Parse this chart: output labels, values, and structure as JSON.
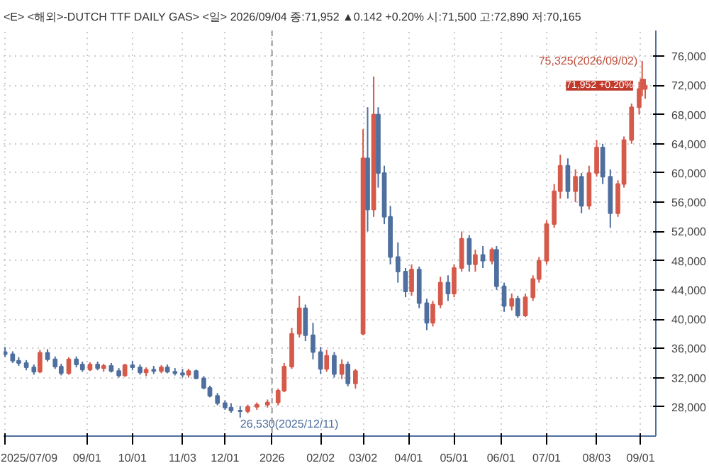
{
  "chart_data": {
    "type": "candlestick",
    "title": "<E> <해외>-DUTCH TTF DAILY GAS> <일> 2026/09/04 종:71,952 ▲0.142 +0.20% 시:71,500 고:72,890 저:70,165",
    "x": [
      "2025-07-09",
      "2025-07-14",
      "2025-07-18",
      "2025-07-23",
      "2025-07-28",
      "2025-08-01",
      "2025-08-06",
      "2025-08-11",
      "2025-08-15",
      "2025-08-20",
      "2025-08-25",
      "2025-08-29",
      "2025-09-03",
      "2025-09-08",
      "2025-09-12",
      "2025-09-17",
      "2025-09-22",
      "2025-09-26",
      "2025-10-01",
      "2025-10-06",
      "2025-10-10",
      "2025-10-15",
      "2025-10-20",
      "2025-10-24",
      "2025-10-29",
      "2025-11-03",
      "2025-11-07",
      "2025-11-12",
      "2025-11-17",
      "2025-11-21",
      "2025-11-26",
      "2025-12-01",
      "2025-12-05",
      "2025-12-11",
      "2025-12-16",
      "2025-12-22",
      "2025-12-29",
      "2026-01-05",
      "2026-01-09",
      "2026-01-14",
      "2026-01-19",
      "2026-01-23",
      "2026-01-28",
      "2026-02-02",
      "2026-02-06",
      "2026-02-11",
      "2026-02-16",
      "2026-02-20",
      "2026-02-25",
      "2026-03-02",
      "2026-03-05",
      "2026-03-09",
      "2026-03-12",
      "2026-03-16",
      "2026-03-20",
      "2026-03-25",
      "2026-03-30",
      "2026-04-03",
      "2026-04-08",
      "2026-04-13",
      "2026-04-17",
      "2026-04-22",
      "2026-04-27",
      "2026-05-01",
      "2026-05-06",
      "2026-05-11",
      "2026-05-15",
      "2026-05-20",
      "2026-05-26",
      "2026-05-29",
      "2026-06-03",
      "2026-06-08",
      "2026-06-12",
      "2026-06-17",
      "2026-06-22",
      "2026-06-26",
      "2026-07-01",
      "2026-07-06",
      "2026-07-10",
      "2026-07-15",
      "2026-07-20",
      "2026-07-24",
      "2026-07-29",
      "2026-08-03",
      "2026-08-07",
      "2026-08-12",
      "2026-08-17",
      "2026-08-21",
      "2026-08-26",
      "2026-08-31",
      "2026-09-02",
      "2026-09-04"
    ],
    "ohlc": [
      [
        35500,
        36200,
        34800,
        35200
      ],
      [
        35200,
        35600,
        34000,
        34300
      ],
      [
        34300,
        34800,
        33600,
        34000
      ],
      [
        34000,
        34400,
        33000,
        33400
      ],
      [
        33400,
        33800,
        32400,
        32800
      ],
      [
        32800,
        35800,
        32600,
        35400
      ],
      [
        35400,
        35900,
        34200,
        34500
      ],
      [
        34500,
        34900,
        33200,
        33500
      ],
      [
        33500,
        33900,
        32300,
        32600
      ],
      [
        32600,
        34800,
        32400,
        34500
      ],
      [
        34500,
        34900,
        33400,
        33800
      ],
      [
        33800,
        34200,
        32800,
        33100
      ],
      [
        33100,
        34100,
        32900,
        33800
      ],
      [
        33800,
        34200,
        33000,
        33300
      ],
      [
        33300,
        33900,
        32800,
        33600
      ],
      [
        33600,
        34000,
        32700,
        32900
      ],
      [
        32900,
        33300,
        32000,
        32300
      ],
      [
        32300,
        33900,
        32100,
        33700
      ],
      [
        33700,
        34300,
        33000,
        33400
      ],
      [
        33400,
        33800,
        32400,
        32700
      ],
      [
        32700,
        33400,
        32200,
        33100
      ],
      [
        33100,
        33600,
        32500,
        32900
      ],
      [
        32900,
        33700,
        32600,
        33400
      ],
      [
        33400,
        33800,
        32600,
        32800
      ],
      [
        32800,
        33300,
        32300,
        32600
      ],
      [
        32600,
        33200,
        32000,
        32400
      ],
      [
        32400,
        33200,
        32000,
        32900
      ],
      [
        32900,
        33100,
        31800,
        31900
      ],
      [
        31900,
        32200,
        30400,
        30600
      ],
      [
        30600,
        30900,
        29300,
        29500
      ],
      [
        29500,
        29900,
        28200,
        28500
      ],
      [
        28500,
        28900,
        27600,
        27900
      ],
      [
        27900,
        28500,
        27200,
        27500
      ],
      [
        27500,
        28100,
        26530,
        27400
      ],
      [
        27400,
        28300,
        27100,
        28000
      ],
      [
        28000,
        28600,
        27600,
        28300
      ],
      [
        28300,
        29000,
        27900,
        28600
      ],
      [
        28600,
        30500,
        28200,
        30200
      ],
      [
        30200,
        34000,
        30000,
        33500
      ],
      [
        33500,
        38800,
        33200,
        38000
      ],
      [
        38000,
        43200,
        37500,
        41500
      ],
      [
        41500,
        42000,
        37000,
        37800
      ],
      [
        37800,
        39500,
        34500,
        35500
      ],
      [
        35500,
        36200,
        32500,
        33200
      ],
      [
        33200,
        35800,
        32800,
        35000
      ],
      [
        35000,
        35500,
        32000,
        32500
      ],
      [
        32500,
        34500,
        31800,
        33800
      ],
      [
        33800,
        34200,
        30800,
        31200
      ],
      [
        31200,
        33200,
        30500,
        32900
      ],
      [
        38000,
        66000,
        37800,
        62000
      ],
      [
        62000,
        69000,
        52000,
        55000
      ],
      [
        55000,
        73200,
        54000,
        68000
      ],
      [
        68000,
        69000,
        58000,
        60000
      ],
      [
        60000,
        61000,
        53000,
        54000
      ],
      [
        54000,
        55500,
        47500,
        48500
      ],
      [
        48500,
        50500,
        45000,
        46500
      ],
      [
        46500,
        47000,
        43000,
        43800
      ],
      [
        43800,
        47500,
        43200,
        46800
      ],
      [
        46800,
        47200,
        41500,
        42200
      ],
      [
        42200,
        42800,
        38500,
        39500
      ],
      [
        39500,
        42500,
        39000,
        42000
      ],
      [
        42000,
        45800,
        41500,
        45000
      ],
      [
        45000,
        46000,
        42500,
        43500
      ],
      [
        43500,
        47500,
        43000,
        47000
      ],
      [
        47000,
        52000,
        46500,
        51000
      ],
      [
        51000,
        51500,
        46500,
        47500
      ],
      [
        47500,
        49500,
        46500,
        48800
      ],
      [
        48800,
        50000,
        47000,
        48000
      ],
      [
        48000,
        49800,
        47500,
        49500
      ],
      [
        49500,
        50000,
        44000,
        44500
      ],
      [
        44500,
        45000,
        41000,
        41800
      ],
      [
        41800,
        43500,
        41200,
        42800
      ],
      [
        42800,
        43200,
        40200,
        40500
      ],
      [
        40500,
        43500,
        40300,
        43000
      ],
      [
        43000,
        46000,
        42500,
        45500
      ],
      [
        45500,
        48500,
        45000,
        48000
      ],
      [
        48000,
        53500,
        47500,
        53000
      ],
      [
        53000,
        58500,
        52500,
        57500
      ],
      [
        57500,
        62500,
        56500,
        61000
      ],
      [
        61000,
        62000,
        56500,
        57500
      ],
      [
        57500,
        60500,
        56000,
        59500
      ],
      [
        59500,
        60000,
        54500,
        55500
      ],
      [
        55500,
        61000,
        55000,
        60000
      ],
      [
        60000,
        64500,
        59500,
        63500
      ],
      [
        63500,
        64000,
        58500,
        59500
      ],
      [
        59500,
        60500,
        52500,
        54500
      ],
      [
        54500,
        59000,
        54000,
        58500
      ],
      [
        58500,
        65000,
        58000,
        64500
      ],
      [
        64500,
        69500,
        64000,
        69000
      ],
      [
        69000,
        72500,
        68000,
        71500
      ],
      [
        71500,
        75325,
        70500,
        72800
      ],
      [
        71500,
        72890,
        70165,
        71952
      ]
    ],
    "colors": [
      "#4f6f9f",
      "#4f6f9f",
      "#4f6f9f",
      "#4f6f9f",
      "#4f6f9f",
      "#d65a4a",
      "#4f6f9f",
      "#4f6f9f",
      "#4f6f9f",
      "#d65a4a",
      "#4f6f9f",
      "#4f6f9f",
      "#d65a4a",
      "#4f6f9f",
      "#d65a4a",
      "#4f6f9f",
      "#4f6f9f",
      "#d65a4a",
      "#4f6f9f",
      "#4f6f9f",
      "#d65a4a",
      "#4f6f9f",
      "#d65a4a",
      "#4f6f9f",
      "#4f6f9f",
      "#4f6f9f",
      "#d65a4a",
      "#4f6f9f",
      "#4f6f9f",
      "#4f6f9f",
      "#4f6f9f",
      "#4f6f9f",
      "#4f6f9f",
      "#4f6f9f",
      "#d65a4a",
      "#d65a4a",
      "#d65a4a",
      "#d65a4a",
      "#d65a4a",
      "#d65a4a",
      "#d65a4a",
      "#4f6f9f",
      "#4f6f9f",
      "#4f6f9f",
      "#d65a4a",
      "#4f6f9f",
      "#d65a4a",
      "#4f6f9f",
      "#d65a4a",
      "#d65a4a",
      "#4f6f9f",
      "#d65a4a",
      "#4f6f9f",
      "#4f6f9f",
      "#4f6f9f",
      "#4f6f9f",
      "#4f6f9f",
      "#d65a4a",
      "#4f6f9f",
      "#4f6f9f",
      "#d65a4a",
      "#d65a4a",
      "#4f6f9f",
      "#d65a4a",
      "#d65a4a",
      "#4f6f9f",
      "#d65a4a",
      "#4f6f9f",
      "#d65a4a",
      "#4f6f9f",
      "#4f6f9f",
      "#d65a4a",
      "#4f6f9f",
      "#d65a4a",
      "#d65a4a",
      "#d65a4a",
      "#d65a4a",
      "#d65a4a",
      "#d65a4a",
      "#4f6f9f",
      "#d65a4a",
      "#4f6f9f",
      "#d65a4a",
      "#d65a4a",
      "#4f6f9f",
      "#4f6f9f",
      "#d65a4a",
      "#d65a4a",
      "#d65a4a",
      "#d65a4a",
      "#d65a4a",
      "#d65a4a"
    ],
    "xlim": [
      "2025-07-08",
      "2026-09-11"
    ],
    "xticks": [
      {
        "value": "2025-07-09",
        "label": "2025/07/09"
      },
      {
        "value": "2025-09-01",
        "label": "09/01"
      },
      {
        "value": "2025-10-01",
        "label": "10/01"
      },
      {
        "value": "2025-11-03",
        "label": "11/03"
      },
      {
        "value": "2025-12-01",
        "label": "12/01"
      },
      {
        "value": "2026-01-01",
        "label": "2026"
      },
      {
        "value": "2026-02-02",
        "label": "02/02"
      },
      {
        "value": "2026-03-02",
        "label": "03/02"
      },
      {
        "value": "2026-04-01",
        "label": "04/01"
      },
      {
        "value": "2026-05-01",
        "label": "05/01"
      },
      {
        "value": "2026-06-01",
        "label": "06/01"
      },
      {
        "value": "2026-07-01",
        "label": "07/01"
      },
      {
        "value": "2026-08-03",
        "label": "08/03"
      },
      {
        "value": "2026-09-01",
        "label": "09/01"
      }
    ],
    "ylim": [
      24000,
      79500
    ],
    "yticks": [
      {
        "value": 28000,
        "label": "28,000"
      },
      {
        "value": 32000,
        "label": "32,000"
      },
      {
        "value": 36000,
        "label": "36,000"
      },
      {
        "value": 40000,
        "label": "40,000"
      },
      {
        "value": 44000,
        "label": "44,000"
      },
      {
        "value": 48000,
        "label": "48,000"
      },
      {
        "value": 52000,
        "label": "52,000"
      },
      {
        "value": 56000,
        "label": "56,000"
      },
      {
        "value": 60000,
        "label": "60,000"
      },
      {
        "value": 64000,
        "label": "64,000"
      },
      {
        "value": 68000,
        "label": "68,000"
      },
      {
        "value": 72000,
        "label": "72,000"
      },
      {
        "value": 76000,
        "label": "76,000"
      }
    ],
    "annotations": [
      {
        "text": "75,325(2026/09/02)",
        "x": "2026-09-02",
        "y": 75325
      },
      {
        "text": "26,530(2025/12/11)",
        "x": "2025-12-11",
        "y": 26530
      },
      {
        "text": "71,952 +0.20%",
        "x": "2026-09-04",
        "y": 71952
      }
    ],
    "ref_lines": [
      {
        "axis": "x",
        "value": "2026-01-01",
        "line_style": "dashed",
        "color": "#999999"
      }
    ],
    "grid": true
  }
}
